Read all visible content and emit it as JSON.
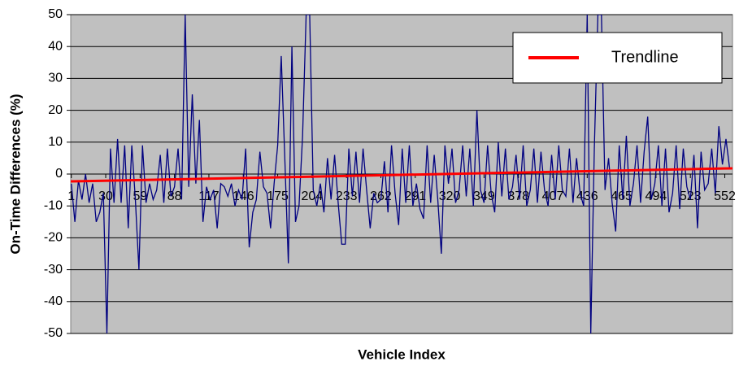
{
  "chart_data": {
    "type": "line",
    "xlabel": "Vehicle Index",
    "ylabel": "On-Time Differences (%)",
    "xlim": [
      0.5,
      558.5
    ],
    "xticks": [
      1,
      30,
      59,
      88,
      117,
      146,
      175,
      204,
      233,
      262,
      291,
      320,
      349,
      378,
      407,
      436,
      465,
      494,
      523,
      552
    ],
    "ylim": [
      -50,
      50
    ],
    "yticks": [
      -50,
      -40,
      -30,
      -20,
      -10,
      0,
      10,
      20,
      30,
      40,
      50
    ],
    "grid": true,
    "legend": "upper right",
    "series": [
      {
        "color": "#000080",
        "x": [
          1,
          4,
          7,
          10,
          13,
          16,
          19,
          22,
          25,
          28,
          31,
          34,
          37,
          40,
          43,
          46,
          49,
          52,
          55,
          58,
          61,
          64,
          67,
          70,
          73,
          76,
          79,
          82,
          85,
          88,
          91,
          94,
          97,
          100,
          103,
          106,
          109,
          112,
          115,
          118,
          121,
          124,
          127,
          130,
          133,
          136,
          139,
          142,
          145,
          148,
          151,
          154,
          157,
          160,
          163,
          166,
          169,
          172,
          175,
          178,
          181,
          184,
          187,
          190,
          193,
          196,
          199,
          202,
          205,
          208,
          211,
          214,
          217,
          220,
          223,
          226,
          229,
          232,
          235,
          238,
          241,
          244,
          247,
          250,
          253,
          256,
          259,
          262,
          265,
          268,
          271,
          274,
          277,
          280,
          283,
          286,
          289,
          292,
          295,
          298,
          301,
          304,
          307,
          310,
          313,
          316,
          319,
          322,
          325,
          328,
          331,
          334,
          337,
          340,
          343,
          346,
          349,
          352,
          355,
          358,
          361,
          364,
          367,
          370,
          373,
          376,
          379,
          382,
          385,
          388,
          391,
          394,
          397,
          400,
          403,
          406,
          409,
          412,
          415,
          418,
          421,
          424,
          427,
          430,
          433,
          436,
          439,
          442,
          445,
          448,
          451,
          454,
          457,
          460,
          463,
          466,
          469,
          472,
          475,
          478,
          481,
          484,
          487,
          490,
          493,
          496,
          499,
          502,
          505,
          508,
          511,
          514,
          517,
          520,
          523,
          526,
          529,
          532,
          535,
          538,
          541,
          544,
          547,
          550,
          553,
          556
        ],
        "values": [
          -3,
          -15,
          -2,
          -8,
          0,
          -9,
          -3,
          -15,
          -12,
          -6,
          -50,
          8,
          -9,
          11,
          -9,
          9,
          -17,
          9,
          -8,
          -30,
          9,
          -9,
          -3,
          -8,
          -5,
          6,
          -9,
          8,
          -7,
          -4,
          8,
          -8,
          50,
          -4,
          25,
          -3,
          17,
          -15,
          -4,
          -8,
          -5,
          -17,
          -3,
          -4,
          -7,
          -3,
          -10,
          -5,
          -8,
          8,
          -23,
          -12,
          -8,
          7,
          -4,
          -6,
          -17,
          -3,
          9,
          37,
          5,
          -28,
          40,
          -15,
          -10,
          12,
          50,
          50,
          -5,
          -10,
          -3,
          -12,
          5,
          -8,
          6,
          -9,
          -22,
          -22,
          8,
          -7,
          7,
          -9,
          8,
          -5,
          -17,
          -6,
          -9,
          -8,
          4,
          -12,
          9,
          -6,
          -16,
          8,
          -9,
          9,
          -10,
          -3,
          -11,
          -14,
          9,
          -9,
          6,
          -8,
          -25,
          9,
          -3,
          8,
          -9,
          -5,
          9,
          -7,
          8,
          -10,
          20,
          -5,
          -9,
          9,
          -6,
          -12,
          10,
          -7,
          8,
          -8,
          -4,
          6,
          -8,
          9,
          -10,
          -5,
          8,
          -9,
          7,
          -5,
          -10,
          6,
          -8,
          9,
          -5,
          -7,
          8,
          -9,
          5,
          -6,
          -10,
          50,
          -50,
          8,
          50,
          50,
          -5,
          5,
          -9,
          -18,
          9,
          -8,
          12,
          -10,
          -3,
          9,
          -9,
          7,
          18,
          -8,
          -3,
          9,
          -10,
          8,
          -12,
          -6,
          9,
          -11,
          8,
          -4,
          -8,
          6,
          -17,
          7,
          -5,
          -3,
          8,
          -6,
          15,
          3,
          11,
          2
        ]
      },
      {
        "name": "Trendline",
        "color": "#ff0000",
        "x": [
          0.5,
          558.5
        ],
        "values": [
          -2.3,
          1.8
        ]
      }
    ]
  }
}
